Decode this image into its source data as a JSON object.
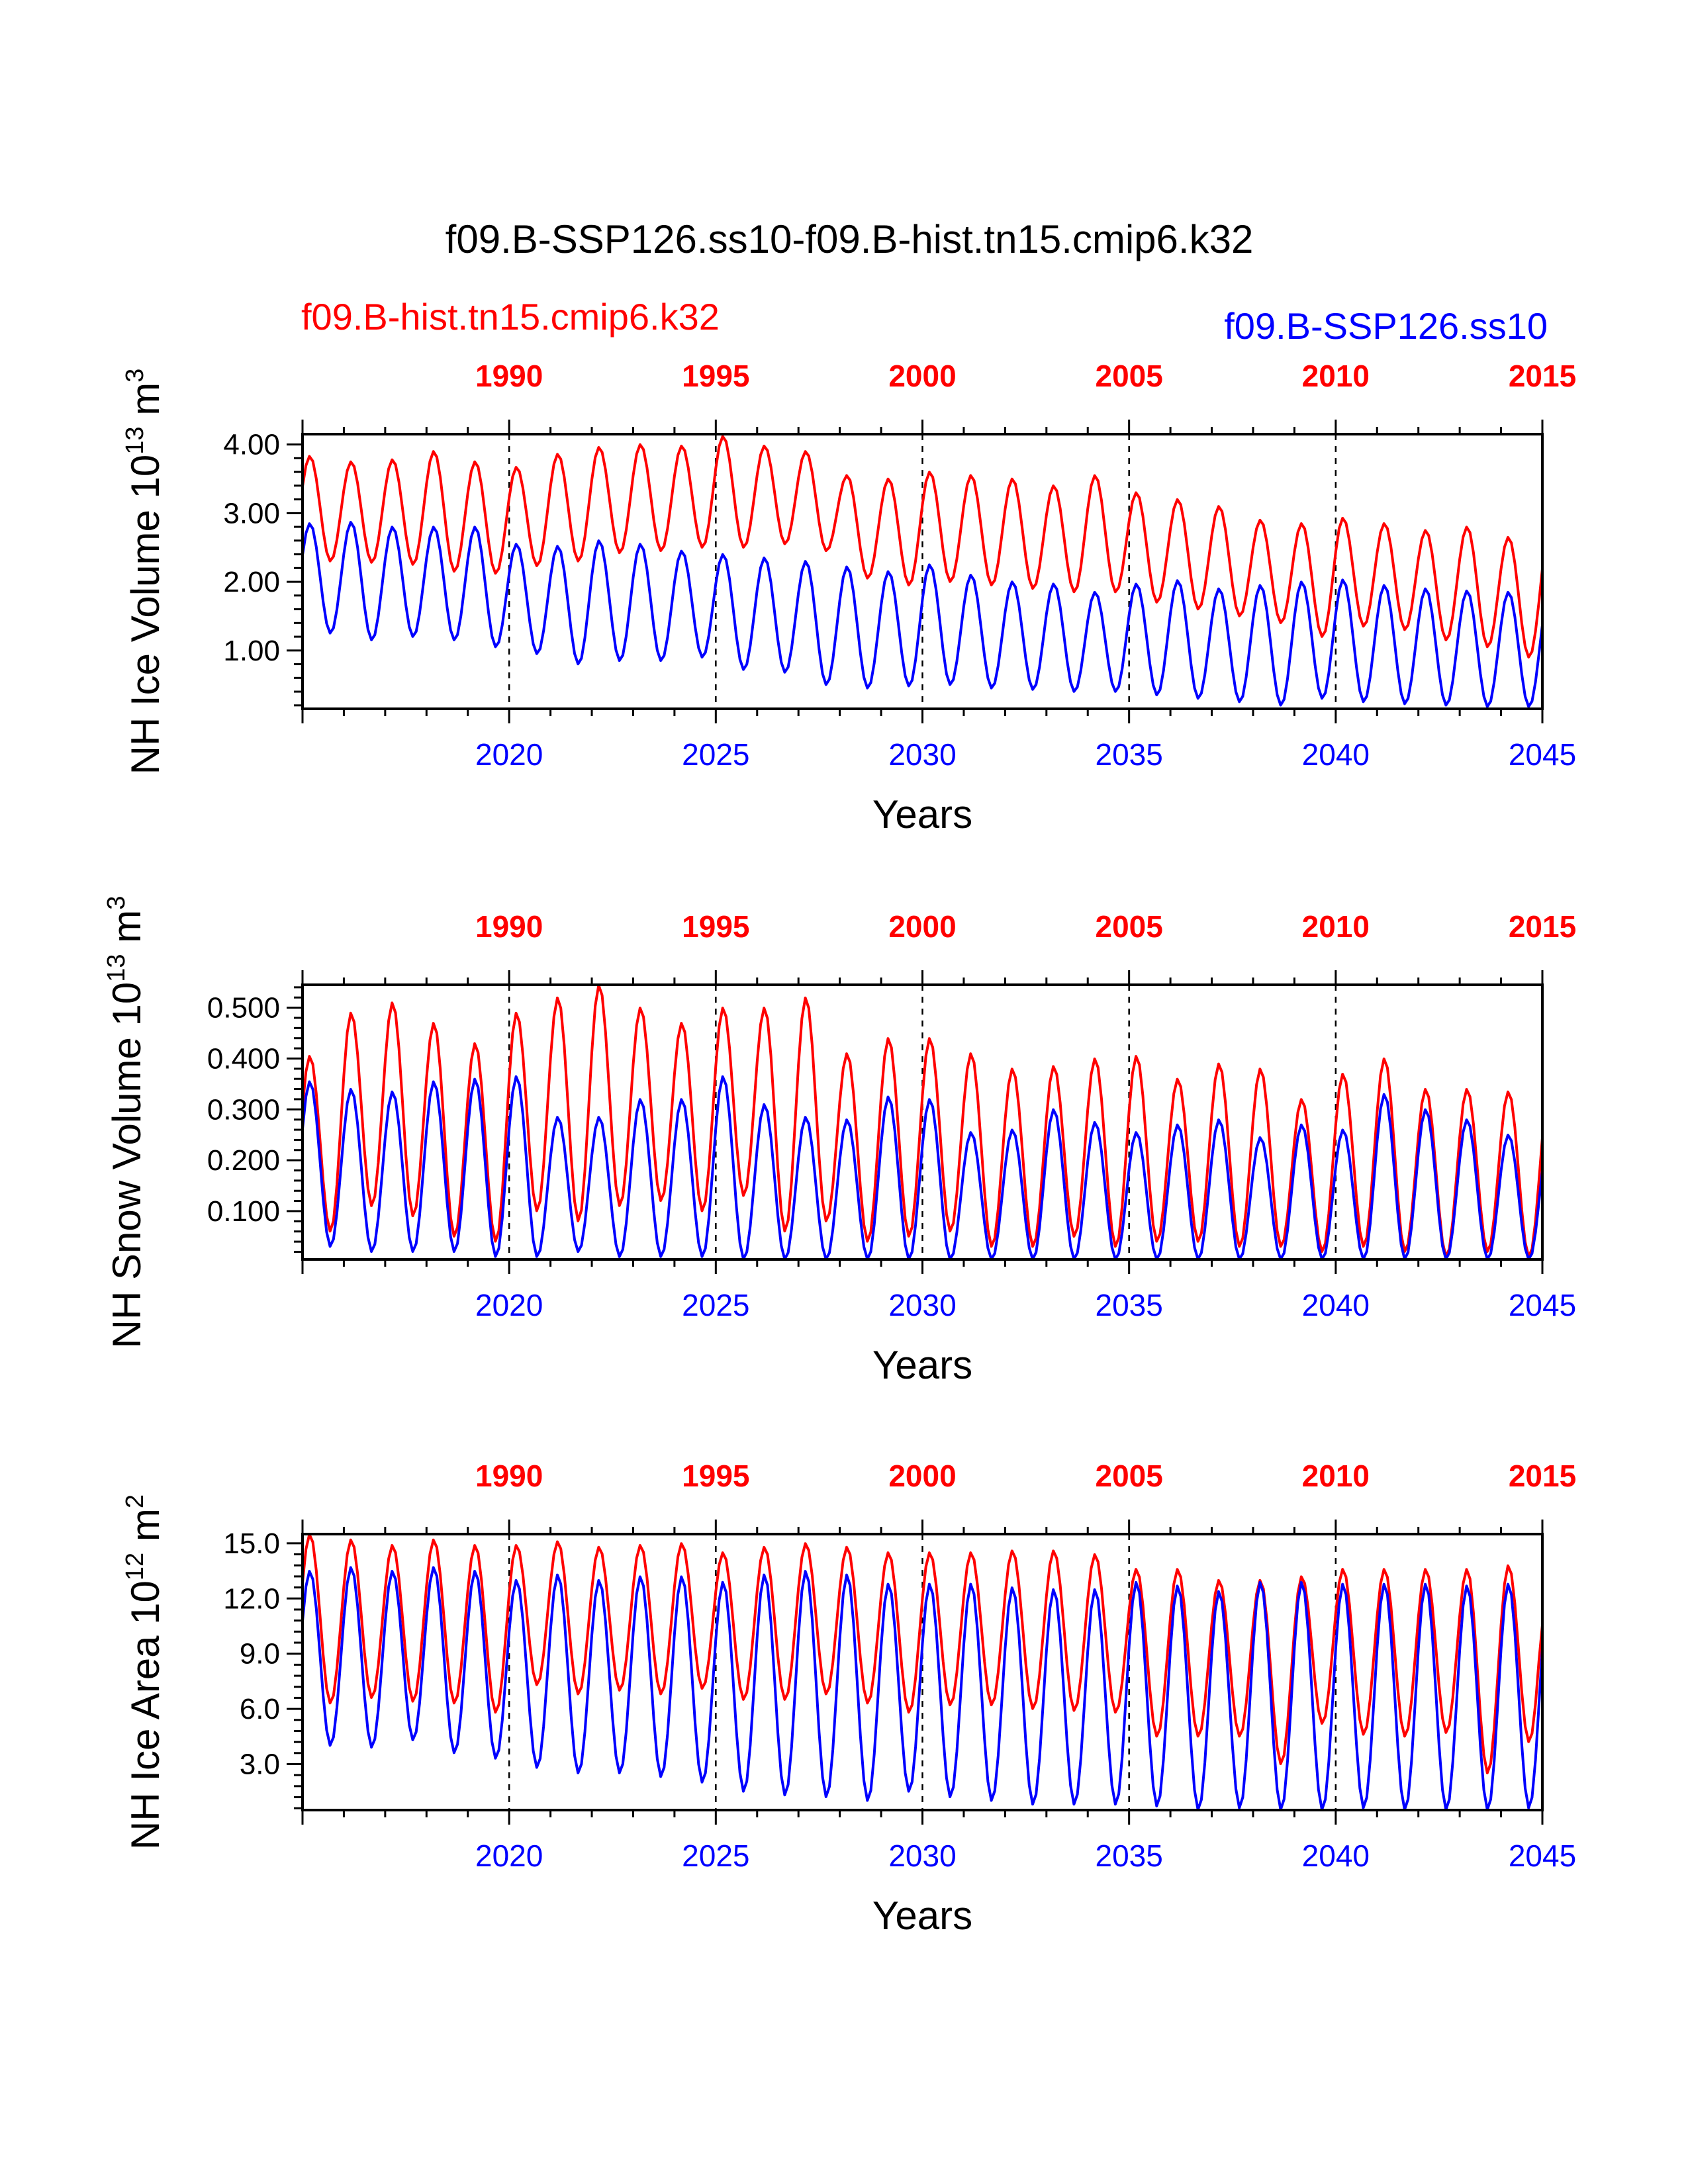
{
  "figure": {
    "title": "f09.B-SSP126.ss10-f09.B-hist.tn15.cmip6.k32",
    "legend_left": "f09.B-hist.tn15.cmip6.k32",
    "legend_right": "f09.B-SSP126.ss10",
    "colors": {
      "hist": "#ff0000",
      "ssp": "#0000ff",
      "axis": "#000000"
    }
  },
  "chart_data": [
    {
      "type": "line",
      "ylabel_main": "NH Ice Volume 10",
      "ylabel_exp": "13",
      "ylabel_unit": " m",
      "ylabel_unit_exp": "3",
      "xlabel": "Years",
      "xlim": [
        2015,
        2045
      ],
      "ylim": [
        0.15,
        4.15
      ],
      "yticks": [
        1.0,
        2.0,
        3.0,
        4.0
      ],
      "ytick_labels": [
        "1.00",
        "2.00",
        "3.00",
        "4.00"
      ],
      "bottom_ticks": [
        "2020",
        "2025",
        "2030",
        "2035",
        "2040",
        "2045"
      ],
      "top_ticks": [
        "1990",
        "1995",
        "2000",
        "2005",
        "2010",
        "2015"
      ],
      "series": [
        {
          "name": "f09.B-hist.tn15.cmip6.k32",
          "max": [
            3.83,
            3.75,
            3.78,
            3.9,
            3.75,
            3.67,
            3.86,
            3.96,
            4.0,
            3.98,
            4.12,
            3.98,
            3.9,
            3.55,
            3.5,
            3.6,
            3.55,
            3.5,
            3.4,
            3.55,
            3.3,
            3.2,
            3.1,
            2.9,
            2.85,
            2.93,
            2.85,
            2.75,
            2.8,
            2.65
          ],
          "min": [
            2.3,
            2.28,
            2.25,
            2.15,
            2.12,
            2.23,
            2.3,
            2.42,
            2.45,
            2.5,
            2.5,
            2.55,
            2.45,
            2.05,
            1.95,
            2.0,
            1.95,
            1.9,
            1.85,
            1.85,
            1.7,
            1.6,
            1.5,
            1.4,
            1.2,
            1.35,
            1.3,
            1.15,
            1.05,
            0.9
          ]
        },
        {
          "name": "f09.B-SSP126.ss10",
          "max": [
            2.85,
            2.87,
            2.8,
            2.8,
            2.8,
            2.55,
            2.52,
            2.6,
            2.55,
            2.45,
            2.4,
            2.35,
            2.3,
            2.22,
            2.15,
            2.25,
            2.1,
            2.0,
            1.97,
            1.85,
            1.97,
            2.02,
            1.9,
            1.95,
            2.0,
            2.03,
            1.95,
            1.9,
            1.87,
            1.85
          ],
          "min": [
            1.25,
            1.15,
            1.2,
            1.15,
            1.05,
            0.95,
            0.8,
            0.85,
            0.85,
            0.9,
            0.72,
            0.68,
            0.5,
            0.45,
            0.48,
            0.5,
            0.45,
            0.43,
            0.4,
            0.4,
            0.35,
            0.3,
            0.25,
            0.2,
            0.3,
            0.25,
            0.22,
            0.2,
            0.18,
            0.18
          ]
        }
      ]
    },
    {
      "type": "line",
      "ylabel_main": "NH Snow Volume 10",
      "ylabel_exp": "13",
      "ylabel_unit": " m",
      "ylabel_unit_exp": "3",
      "xlabel": "Years",
      "xlim": [
        2015,
        2045
      ],
      "ylim": [
        0.005,
        0.545
      ],
      "yticks": [
        0.1,
        0.2,
        0.3,
        0.4,
        0.5
      ],
      "ytick_labels": [
        "0.100",
        "0.200",
        "0.300",
        "0.400",
        "0.500"
      ],
      "bottom_ticks": [
        "2020",
        "2025",
        "2030",
        "2035",
        "2040",
        "2045"
      ],
      "top_ticks": [
        "1990",
        "1995",
        "2000",
        "2005",
        "2010",
        "2015"
      ],
      "series": [
        {
          "name": "f09.B-hist.tn15.cmip6.k32",
          "max": [
            0.405,
            0.49,
            0.51,
            0.47,
            0.43,
            0.49,
            0.52,
            0.545,
            0.5,
            0.47,
            0.5,
            0.5,
            0.52,
            0.41,
            0.44,
            0.44,
            0.41,
            0.38,
            0.385,
            0.4,
            0.405,
            0.36,
            0.39,
            0.38,
            0.32,
            0.37,
            0.4,
            0.34,
            0.34,
            0.335
          ],
          "min": [
            0.06,
            0.11,
            0.09,
            0.05,
            0.04,
            0.1,
            0.08,
            0.11,
            0.12,
            0.1,
            0.13,
            0.06,
            0.08,
            0.04,
            0.05,
            0.06,
            0.03,
            0.03,
            0.05,
            0.03,
            0.04,
            0.04,
            0.03,
            0.03,
            0.02,
            0.03,
            0.02,
            0.01,
            0.02,
            0.01
          ]
        },
        {
          "name": "f09.B-SSP126.ss10",
          "max": [
            0.355,
            0.34,
            0.335,
            0.355,
            0.36,
            0.365,
            0.285,
            0.285,
            0.32,
            0.32,
            0.365,
            0.31,
            0.285,
            0.28,
            0.325,
            0.32,
            0.255,
            0.26,
            0.3,
            0.275,
            0.255,
            0.27,
            0.28,
            0.245,
            0.27,
            0.26,
            0.33,
            0.3,
            0.28,
            0.25
          ],
          "min": [
            0.03,
            0.02,
            0.02,
            0.02,
            0.01,
            0.01,
            0.02,
            0.01,
            0.01,
            0.01,
            0.005,
            0.005,
            0.005,
            0.005,
            0.005,
            0.005,
            0.005,
            0.005,
            0.005,
            0.005,
            0.005,
            0.005,
            0.005,
            0.005,
            0.005,
            0.005,
            0.005,
            0.005,
            0.005,
            0.005
          ]
        }
      ]
    },
    {
      "type": "line",
      "ylabel_main": "NH Ice Area 10",
      "ylabel_exp": "12",
      "ylabel_unit": " m",
      "ylabel_unit_exp": "2",
      "xlabel": "Years",
      "xlim": [
        2015,
        2045
      ],
      "ylim": [
        0.5,
        15.5
      ],
      "yticks": [
        3.0,
        6.0,
        9.0,
        12.0,
        15.0
      ],
      "ytick_labels": [
        "3.0",
        "6.0",
        "9.0",
        "12.0",
        "15.0"
      ],
      "bottom_ticks": [
        "2020",
        "2025",
        "2030",
        "2035",
        "2040",
        "2045"
      ],
      "top_ticks": [
        "1990",
        "1995",
        "2000",
        "2005",
        "2010",
        "2015"
      ],
      "series": [
        {
          "name": "f09.B-hist.tn15.cmip6.k32",
          "max": [
            15.5,
            15.2,
            14.9,
            15.2,
            14.9,
            14.9,
            15.1,
            14.8,
            14.9,
            15.0,
            14.5,
            14.8,
            15.0,
            14.8,
            14.5,
            14.5,
            14.5,
            14.6,
            14.6,
            14.4,
            13.6,
            13.6,
            13.0,
            13.0,
            13.2,
            13.6,
            13.6,
            13.6,
            13.6,
            13.8
          ],
          "min": [
            6.3,
            6.6,
            6.4,
            6.3,
            5.8,
            7.3,
            6.8,
            7.0,
            6.8,
            7.1,
            6.5,
            6.5,
            6.8,
            6.3,
            5.8,
            6.2,
            6.2,
            6.0,
            5.9,
            5.8,
            4.5,
            4.5,
            4.5,
            3.0,
            5.2,
            4.6,
            4.5,
            4.7,
            2.5,
            4.2
          ]
        },
        {
          "name": "f09.B-SSP126.ss10",
          "max": [
            13.5,
            13.7,
            13.5,
            13.7,
            13.5,
            13.0,
            13.3,
            13.0,
            13.2,
            13.2,
            12.9,
            13.3,
            13.5,
            13.3,
            12.8,
            12.8,
            12.8,
            12.6,
            12.5,
            12.5,
            12.9,
            12.7,
            12.4,
            12.9,
            12.9,
            12.8,
            12.8,
            12.8,
            12.7,
            12.8
          ],
          "min": [
            4.0,
            3.9,
            4.3,
            3.6,
            3.3,
            2.8,
            2.5,
            2.5,
            2.3,
            2.0,
            1.5,
            1.3,
            1.2,
            1.0,
            1.5,
            1.2,
            1.0,
            0.8,
            0.8,
            0.8,
            0.7,
            0.5,
            0.6,
            0.5,
            0.5,
            0.6,
            0.5,
            0.5,
            0.5,
            0.6
          ]
        }
      ]
    }
  ]
}
